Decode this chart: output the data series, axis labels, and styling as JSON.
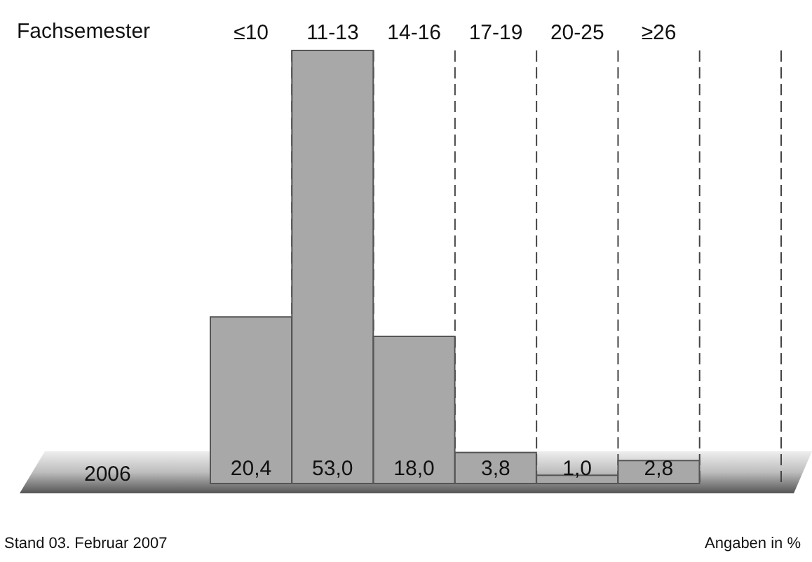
{
  "chart_data": {
    "type": "bar",
    "xlabel": "Fachsemester",
    "categories": [
      "≤10",
      "11-13",
      "14-16",
      "17-19",
      "20-25",
      "≥26",
      null
    ],
    "series": [
      {
        "name": "2006",
        "color": "#a8a8a8",
        "values": [
          20.4,
          53.0,
          18.0,
          3.8,
          1.0,
          2.8,
          null
        ],
        "value_labels": [
          "20,4",
          "53,0",
          "18,0",
          "3,8",
          "1,0",
          "2,8",
          null
        ]
      }
    ],
    "grid": "x",
    "annotations": [
      "Stand 03. Februar 2007",
      "Angaben in %"
    ]
  }
}
